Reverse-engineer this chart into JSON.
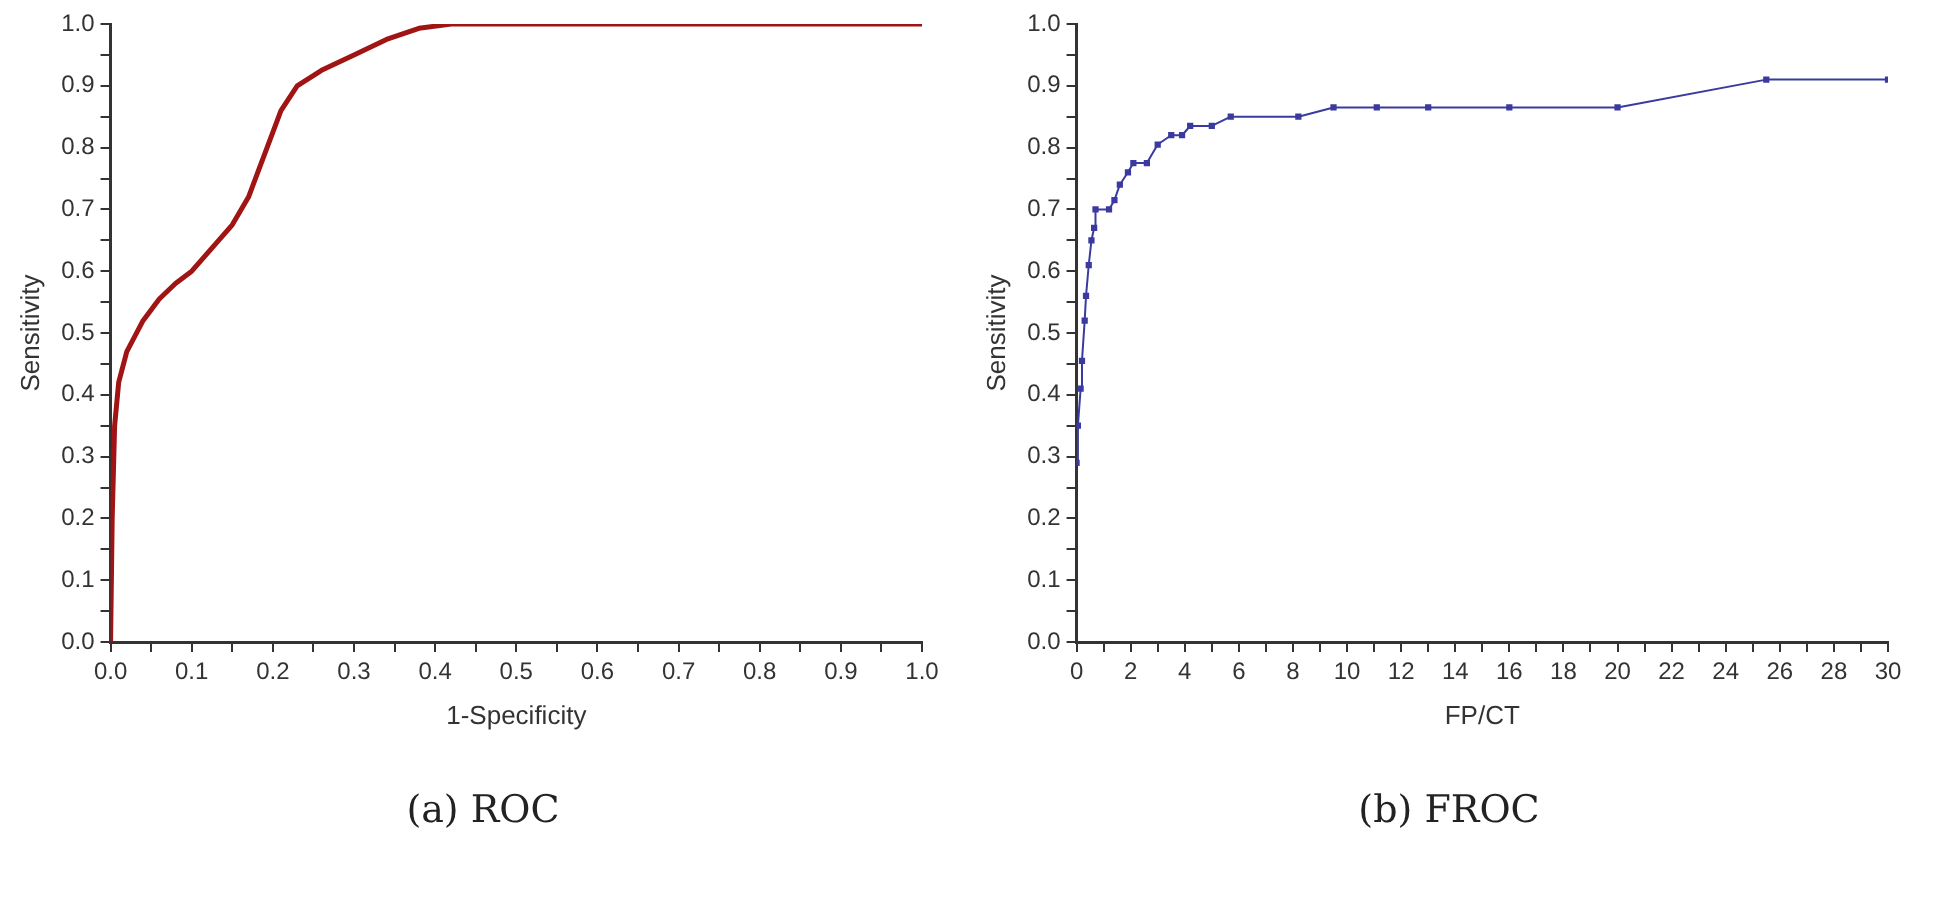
{
  "chart_data": [
    {
      "type": "line",
      "title": "(a) ROC",
      "xlabel": "1-Specificity",
      "ylabel": "Sensitivity",
      "grid": false,
      "legend": false,
      "marker": "none",
      "line_style": "solid",
      "series": [
        {
          "color": "#a01414",
          "x": [
            0,
            0.002,
            0.005,
            0.01,
            0.02,
            0.04,
            0.06,
            0.08,
            0.1,
            0.12,
            0.15,
            0.17,
            0.19,
            0.21,
            0.23,
            0.26,
            0.3,
            0.34,
            0.38,
            0.42,
            0.5,
            0.66,
            1.0
          ],
          "values": [
            0,
            0.2,
            0.35,
            0.42,
            0.47,
            0.52,
            0.555,
            0.58,
            0.6,
            0.63,
            0.675,
            0.72,
            0.79,
            0.86,
            0.9,
            0.925,
            0.95,
            0.975,
            0.993,
            1.0,
            1.0,
            1.0,
            1.0
          ]
        }
      ],
      "xlim": [
        0,
        1
      ],
      "ylim": [
        0,
        1
      ],
      "xticks": [
        {
          "value": 0,
          "label": "0.0"
        },
        {
          "value": 0.05,
          "label": null
        },
        0.1,
        {
          "value": 0.15,
          "label": null
        },
        0.2,
        {
          "value": 0.25,
          "label": null
        },
        0.3,
        {
          "value": 0.35,
          "label": null
        },
        0.4,
        {
          "value": 0.45,
          "label": null
        },
        0.5,
        {
          "value": 0.55,
          "label": null
        },
        0.6,
        {
          "value": 0.65,
          "label": null
        },
        0.7,
        {
          "value": 0.75,
          "label": null
        },
        0.8,
        {
          "value": 0.85,
          "label": null
        },
        0.9,
        {
          "value": 0.95,
          "label": null
        },
        {
          "value": 1,
          "label": "1.0"
        }
      ],
      "yticks": [
        {
          "value": 0,
          "label": "0.0"
        },
        {
          "value": 0.05,
          "label": null
        },
        0.1,
        {
          "value": 0.15,
          "label": null
        },
        0.2,
        {
          "value": 0.25,
          "label": null
        },
        0.3,
        {
          "value": 0.35,
          "label": null
        },
        0.4,
        {
          "value": 0.45,
          "label": null
        },
        0.5,
        {
          "value": 0.55,
          "label": null
        },
        0.6,
        {
          "value": 0.65,
          "label": null
        },
        0.7,
        {
          "value": 0.75,
          "label": null
        },
        0.8,
        {
          "value": 0.85,
          "label": null
        },
        0.9,
        {
          "value": 0.95,
          "label": null
        },
        {
          "value": 1,
          "label": "1.0"
        }
      ]
    },
    {
      "type": "line",
      "title": "(b) FROC",
      "xlabel": "FP/CT",
      "ylabel": "Sensitivity",
      "grid": false,
      "legend": false,
      "marker": "square",
      "line_style": "solid",
      "series": [
        {
          "color": "#3a3aa0",
          "x": [
            0,
            0.05,
            0.15,
            0.2,
            0.3,
            0.35,
            0.45,
            0.55,
            0.65,
            0.7,
            1.2,
            1.4,
            1.6,
            1.9,
            2.1,
            2.6,
            3.0,
            3.5,
            3.9,
            4.2,
            5.0,
            5.7,
            8.2,
            9.5,
            11.1,
            13,
            16,
            20,
            25.5,
            30
          ],
          "values": [
            0.29,
            0.35,
            0.41,
            0.455,
            0.52,
            0.56,
            0.61,
            0.65,
            0.67,
            0.7,
            0.7,
            0.715,
            0.74,
            0.76,
            0.775,
            0.775,
            0.805,
            0.82,
            0.82,
            0.835,
            0.835,
            0.85,
            0.85,
            0.865,
            0.865,
            0.865,
            0.865,
            0.865,
            0.91,
            0.91
          ]
        }
      ],
      "xlim": [
        0,
        30
      ],
      "ylim": [
        0,
        1
      ],
      "xticks": [
        0,
        {
          "value": 1,
          "label": null
        },
        2,
        {
          "value": 3,
          "label": null
        },
        4,
        {
          "value": 5,
          "label": null
        },
        6,
        {
          "value": 7,
          "label": null
        },
        8,
        {
          "value": 9,
          "label": null
        },
        10,
        {
          "value": 11,
          "label": null
        },
        12,
        {
          "value": 13,
          "label": null
        },
        14,
        {
          "value": 15,
          "label": null
        },
        16,
        {
          "value": 17,
          "label": null
        },
        18,
        {
          "value": 19,
          "label": null
        },
        20,
        {
          "value": 21,
          "label": null
        },
        22,
        {
          "value": 23,
          "label": null
        },
        24,
        {
          "value": 25,
          "label": null
        },
        26,
        {
          "value": 27,
          "label": null
        },
        28,
        {
          "value": 29,
          "label": null
        },
        30
      ],
      "yticks": [
        {
          "value": 0,
          "label": "0.0"
        },
        {
          "value": 0.05,
          "label": null
        },
        0.1,
        {
          "value": 0.15,
          "label": null
        },
        0.2,
        {
          "value": 0.25,
          "label": null
        },
        0.3,
        {
          "value": 0.35,
          "label": null
        },
        0.4,
        {
          "value": 0.45,
          "label": null
        },
        0.5,
        {
          "value": 0.55,
          "label": null
        },
        0.6,
        {
          "value": 0.65,
          "label": null
        },
        0.7,
        {
          "value": 0.75,
          "label": null
        },
        0.8,
        {
          "value": 0.85,
          "label": null
        },
        0.9,
        {
          "value": 0.95,
          "label": null
        },
        {
          "value": 1,
          "label": "1.0"
        }
      ]
    }
  ]
}
